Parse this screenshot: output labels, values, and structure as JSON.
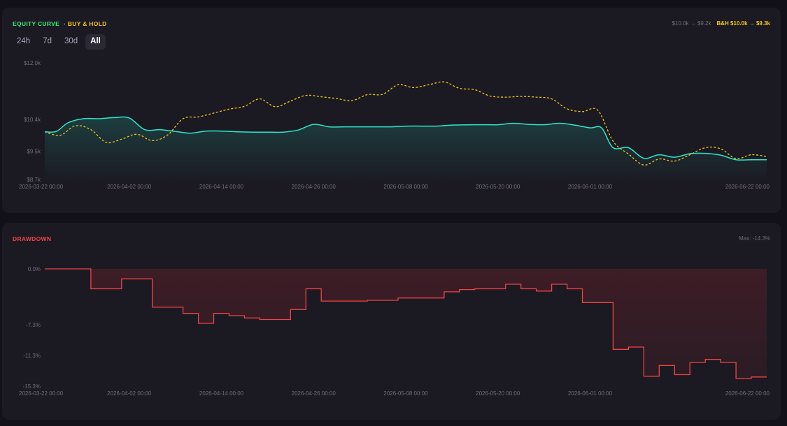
{
  "equity_panel": {
    "title_equity": "EQUITY CURVE",
    "title_bh": "· BUY & HOLD",
    "stat_strategy": "$10.0k → $9.2k",
    "stat_bh": "B&H $10.0k → $9.3k",
    "ranges": [
      {
        "label": "24h",
        "active": false
      },
      {
        "label": "7d",
        "active": false
      },
      {
        "label": "30d",
        "active": false
      },
      {
        "label": "All",
        "active": true
      }
    ]
  },
  "drawdown_panel": {
    "title": "DRAWDOWN",
    "stat": "Max: -14.3%"
  },
  "colors": {
    "equity_line": "#2de6cc",
    "bh_line": "#f0c419",
    "drawdown_line": "#ef4444"
  },
  "chart_data": [
    {
      "type": "area",
      "ylim": [
        8700,
        12000
      ],
      "y_ticks": [
        {
          "value": 12000,
          "label": "$12.0k"
        },
        {
          "value": 10400,
          "label": "$10.4k"
        },
        {
          "value": 9500,
          "label": "$9.5k"
        },
        {
          "value": 8700,
          "label": "$8.7k"
        }
      ],
      "x_ticks": [
        {
          "day": 0,
          "label": "2026-03-22 00:00"
        },
        {
          "day": 11,
          "label": "2026-04-02 00:00"
        },
        {
          "day": 23,
          "label": "2026-04-14 00:00"
        },
        {
          "day": 35,
          "label": "2026-04-26 00:00"
        },
        {
          "day": 47,
          "label": "2026-05-08 00:00"
        },
        {
          "day": 59,
          "label": "2026-05-20 00:00"
        },
        {
          "day": 71,
          "label": "2026-06-01 00:00"
        },
        {
          "day": 92,
          "label": "2026-06-22 00:00"
        }
      ],
      "series": [
        {
          "values": [
            [
              0,
              10050
            ],
            [
              1.5,
              10060
            ],
            [
              3,
              10300
            ],
            [
              5,
              10420
            ],
            [
              7,
              10420
            ],
            [
              9,
              10450
            ],
            [
              11,
              10440
            ],
            [
              13,
              10110
            ],
            [
              15,
              10110
            ],
            [
              17,
              10060
            ],
            [
              19,
              10010
            ],
            [
              21,
              10070
            ],
            [
              23,
              10070
            ],
            [
              25,
              10050
            ],
            [
              27,
              10040
            ],
            [
              29,
              10040
            ],
            [
              31,
              10040
            ],
            [
              33,
              10100
            ],
            [
              35,
              10260
            ],
            [
              37,
              10190
            ],
            [
              39,
              10190
            ],
            [
              41,
              10190
            ],
            [
              43,
              10190
            ],
            [
              45,
              10190
            ],
            [
              47,
              10210
            ],
            [
              49,
              10210
            ],
            [
              51,
              10210
            ],
            [
              53,
              10240
            ],
            [
              55,
              10245
            ],
            [
              57,
              10250
            ],
            [
              59,
              10250
            ],
            [
              61,
              10290
            ],
            [
              63,
              10260
            ],
            [
              65,
              10250
            ],
            [
              67,
              10290
            ],
            [
              69,
              10240
            ],
            [
              71,
              10160
            ],
            [
              72.5,
              10160
            ],
            [
              74,
              9600
            ],
            [
              76,
              9600
            ],
            [
              78,
              9300
            ],
            [
              80,
              9400
            ],
            [
              82,
              9330
            ],
            [
              84,
              9430
            ],
            [
              86,
              9440
            ],
            [
              88,
              9390
            ],
            [
              90,
              9260
            ],
            [
              92,
              9260
            ],
            [
              94,
              9260
            ]
          ]
        },
        {
          "values": [
            [
              0,
              10050
            ],
            [
              2,
              9950
            ],
            [
              4,
              10220
            ],
            [
              6,
              10110
            ],
            [
              8,
              9750
            ],
            [
              10,
              9840
            ],
            [
              12,
              9980
            ],
            [
              14,
              9800
            ],
            [
              16,
              9960
            ],
            [
              18,
              10420
            ],
            [
              20,
              10470
            ],
            [
              22,
              10580
            ],
            [
              24,
              10690
            ],
            [
              26,
              10770
            ],
            [
              28,
              10980
            ],
            [
              30,
              10760
            ],
            [
              32,
              10920
            ],
            [
              34,
              11080
            ],
            [
              36,
              11040
            ],
            [
              38,
              10990
            ],
            [
              40,
              10930
            ],
            [
              42,
              11100
            ],
            [
              44,
              11110
            ],
            [
              46,
              11380
            ],
            [
              48,
              11300
            ],
            [
              50,
              11380
            ],
            [
              52,
              11460
            ],
            [
              54,
              11280
            ],
            [
              56,
              11240
            ],
            [
              58,
              11060
            ],
            [
              60,
              11030
            ],
            [
              62,
              11050
            ],
            [
              64,
              11030
            ],
            [
              66,
              10980
            ],
            [
              68,
              10700
            ],
            [
              70,
              10620
            ],
            [
              72,
              10660
            ],
            [
              74,
              9780
            ],
            [
              76,
              9420
            ],
            [
              78,
              9110
            ],
            [
              80,
              9280
            ],
            [
              82,
              9220
            ],
            [
              84,
              9400
            ],
            [
              86,
              9600
            ],
            [
              88,
              9570
            ],
            [
              90,
              9290
            ],
            [
              92,
              9400
            ],
            [
              94,
              9350
            ]
          ]
        }
      ]
    },
    {
      "type": "area",
      "ylim": [
        -15.3,
        0
      ],
      "y_ticks": [
        {
          "value": 0,
          "label": "0.0%"
        },
        {
          "value": -7.3,
          "label": "-7.3%"
        },
        {
          "value": -11.3,
          "label": "-11.3%"
        },
        {
          "value": -15.3,
          "label": "-15.3%"
        }
      ],
      "x_ticks": [
        {
          "day": 0,
          "label": "2026-03-22 00:00"
        },
        {
          "day": 11,
          "label": "2026-04-02 00:00"
        },
        {
          "day": 23,
          "label": "2026-04-14 00:00"
        },
        {
          "day": 35,
          "label": "2026-04-26 00:00"
        },
        {
          "day": 47,
          "label": "2026-05-08 00:00"
        },
        {
          "day": 59,
          "label": "2026-05-20 00:00"
        },
        {
          "day": 71,
          "label": "2026-06-01 00:00"
        },
        {
          "day": 92,
          "label": "2026-06-22 00:00"
        }
      ],
      "series": [
        {
          "values": [
            [
              0,
              0
            ],
            [
              6,
              -2.6
            ],
            [
              10,
              -1.3
            ],
            [
              14,
              -5
            ],
            [
              18,
              -5.8
            ],
            [
              20,
              -7.1
            ],
            [
              22,
              -5.8
            ],
            [
              24,
              -6.1
            ],
            [
              26,
              -6.4
            ],
            [
              28,
              -6.6
            ],
            [
              32,
              -5.3
            ],
            [
              34,
              -2.6
            ],
            [
              36,
              -4.2
            ],
            [
              42,
              -4.1
            ],
            [
              46,
              -3.8
            ],
            [
              52,
              -3.0
            ],
            [
              54,
              -2.7
            ],
            [
              56,
              -2.6
            ],
            [
              60,
              -2.0
            ],
            [
              62,
              -2.6
            ],
            [
              64,
              -2.9
            ],
            [
              66,
              -2.0
            ],
            [
              68,
              -2.6
            ],
            [
              70,
              -4.4
            ],
            [
              74,
              -10.5
            ],
            [
              76,
              -10.2
            ],
            [
              78,
              -14.0
            ],
            [
              80,
              -12.6
            ],
            [
              82,
              -13.8
            ],
            [
              84,
              -12.2
            ],
            [
              86,
              -11.8
            ],
            [
              88,
              -12.2
            ],
            [
              90,
              -14.3
            ],
            [
              92,
              -14.1
            ],
            [
              94,
              -14.1
            ]
          ]
        }
      ]
    }
  ]
}
